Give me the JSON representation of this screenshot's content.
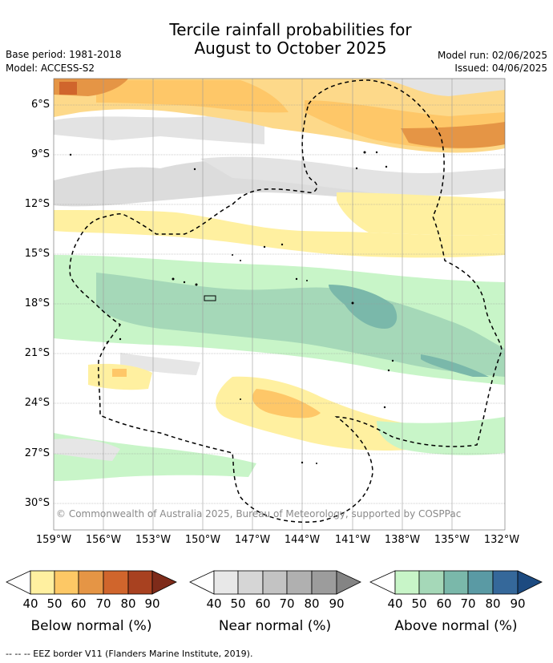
{
  "title": {
    "line1": "Tercile rainfall probabilities for",
    "line2": "August to October 2025"
  },
  "meta": {
    "base_period": "Base period: 1981-2018",
    "model": "Model: ACCESS-S2",
    "model_run": "Model run: 02/06/2025",
    "issued": "Issued: 04/06/2025"
  },
  "lat_labels": [
    "6°S",
    "9°S",
    "12°S",
    "15°S",
    "18°S",
    "21°S",
    "24°S",
    "27°S",
    "30°S"
  ],
  "lon_labels": [
    "159°W",
    "156°W",
    "153°W",
    "150°W",
    "147°W",
    "144°W",
    "141°W",
    "138°W",
    "135°W",
    "132°W"
  ],
  "copyright": "© Commonwealth of Australia 2025, Bureau of Meteorology, supported by COSPPac",
  "legend": {
    "below": {
      "label": "Below normal (%)",
      "ticks": [
        "40",
        "50",
        "60",
        "70",
        "80",
        "90"
      ],
      "colors": [
        "#fff0a0",
        "#fdc865",
        "#e59545",
        "#d0652c",
        "#a84120",
        "#7e2b1a"
      ]
    },
    "near": {
      "label": "Near normal (%)",
      "ticks": [
        "40",
        "50",
        "60",
        "70",
        "80",
        "90"
      ],
      "colors": [
        "#e8e8e8",
        "#d6d6d6",
        "#c3c3c3",
        "#b0b0b0",
        "#9c9c9c",
        "#848484"
      ]
    },
    "above": {
      "label": "Above normal (%)",
      "ticks": [
        "40",
        "50",
        "60",
        "70",
        "80",
        "90"
      ],
      "colors": [
        "#c8f5c8",
        "#a5d8b8",
        "#7ab8aa",
        "#5a9aa4",
        "#35689a",
        "#1c4a80"
      ]
    }
  },
  "eez_note": "--  --  -- EEZ border V11 (Flanders Marine Institute, 2019)."
}
